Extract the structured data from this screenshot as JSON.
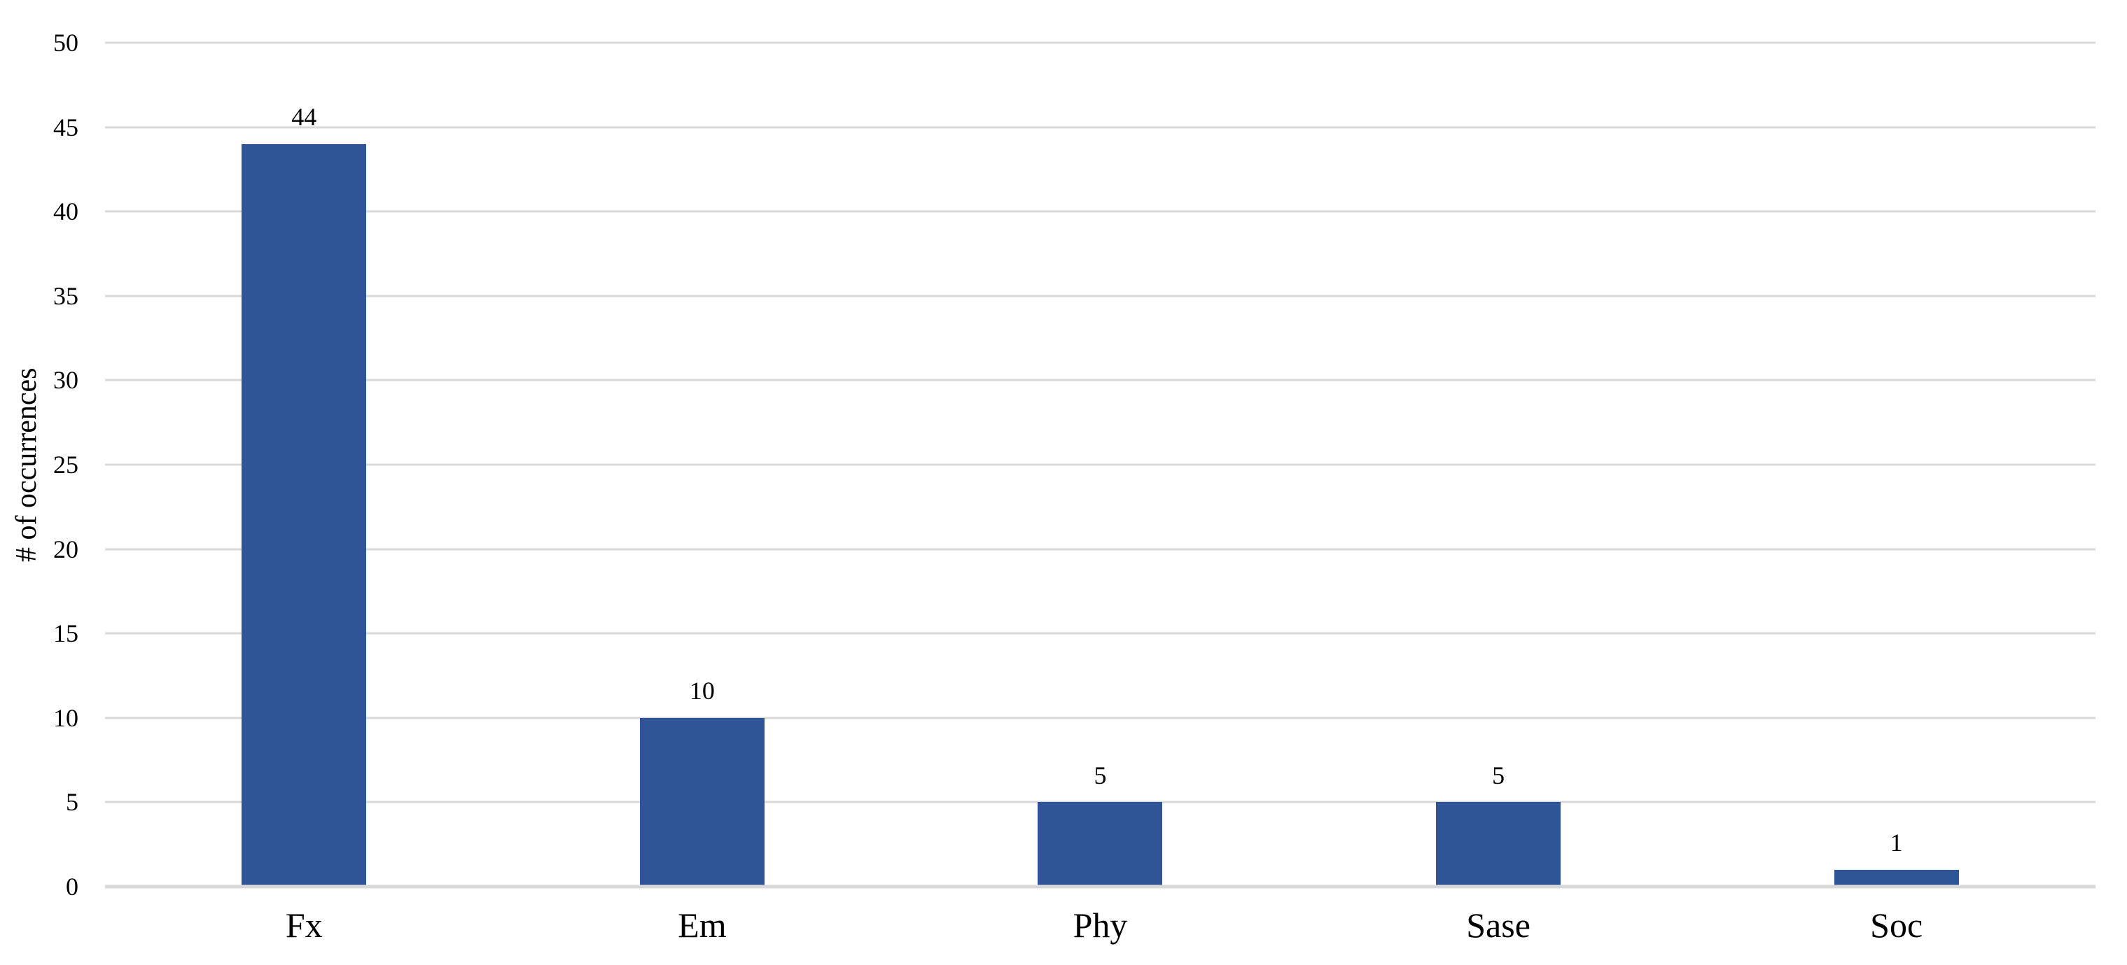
{
  "chart_data": {
    "type": "bar",
    "title": "",
    "xlabel": "",
    "ylabel": "# of occurrences",
    "categories": [
      "Fx",
      "Em",
      "Phy",
      "Sase",
      "Soc"
    ],
    "values": [
      44,
      10,
      5,
      5,
      1
    ],
    "data_labels": [
      "44",
      "10",
      "5",
      "5",
      "1"
    ],
    "show_data_labels": true,
    "ylim": [
      0,
      50
    ],
    "yticks": [
      0,
      5,
      10,
      15,
      20,
      25,
      30,
      35,
      40,
      45,
      50
    ],
    "ytick_labels": [
      "0",
      "5",
      "10",
      "15",
      "20",
      "25",
      "30",
      "35",
      "40",
      "45",
      "50"
    ],
    "grid": true,
    "legend_position": "none",
    "colors": {
      "bar": "#2F5597",
      "gridline": "#D9D9D9",
      "axis_line": "#D9D9D9",
      "text": "#000000",
      "background": "#FFFFFF"
    }
  }
}
